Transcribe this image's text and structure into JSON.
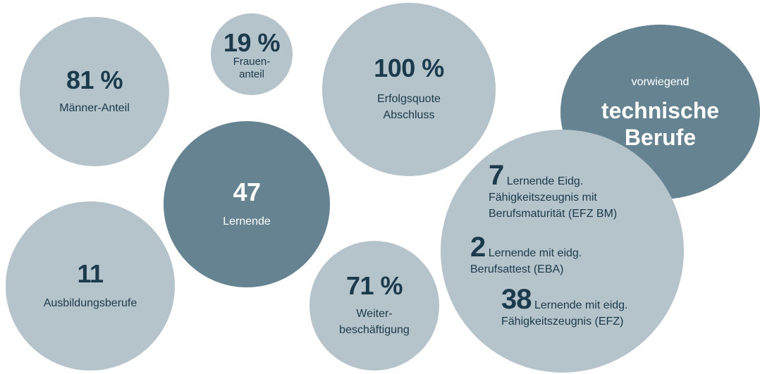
{
  "colors": {
    "light_bubble": "#b5c3cb",
    "dark_bubble": "#668391",
    "text_dark": "#1b3a4b",
    "text_light": "#ffffff"
  },
  "bubbles": {
    "maenner": {
      "value": "81 %",
      "label": "Männer-Anteil"
    },
    "frauen": {
      "value": "19 %",
      "label_line1": "Frauen-",
      "label_line2": "anteil"
    },
    "erfolg": {
      "value": "100 %",
      "label_line1": "Erfolgsquote",
      "label_line2": "Abschluss"
    },
    "technisch": {
      "intro": "vorwiegend",
      "line1": "technische",
      "line2": "Berufe"
    },
    "lernende": {
      "value": "47",
      "label": "Lernende"
    },
    "ausbildung": {
      "value": "11",
      "label": "Ausbildungsberufe"
    },
    "weiter": {
      "value": "71 %",
      "label_line1": "Weiter-",
      "label_line2": "beschäftigung"
    },
    "abschluss": {
      "entries": [
        {
          "value": "7",
          "text_line1": "Lernende Eidg.",
          "text_line2": "Fähigkeitszeugnis mit",
          "text_line3": "Berufsmaturität (EFZ BM)"
        },
        {
          "value": "2",
          "text_line1": "Lernende mit eidg.",
          "text_line2": "Berufsattest (EBA)"
        },
        {
          "value": "38",
          "text_line1": "Lernende mit eidg.",
          "text_line2": "Fähigkeitszeugnis (EFZ)"
        }
      ]
    }
  }
}
